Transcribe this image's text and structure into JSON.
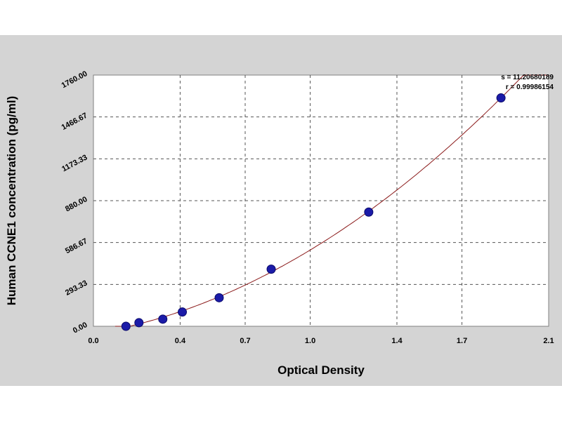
{
  "chart_data": {
    "type": "scatter",
    "xlabel": "Optical Density",
    "ylabel": "Human CCNE1 concentration (pg/ml)",
    "xlim": [
      0.0,
      2.1
    ],
    "ylim": [
      0.0,
      1760.0
    ],
    "x_ticks": [
      0.0,
      0.4,
      0.7,
      1.0,
      1.4,
      1.7,
      2.1
    ],
    "x_tick_labels": [
      "0.0",
      "0.4",
      "0.7",
      "1.0",
      "1.4",
      "1.7",
      "2.1"
    ],
    "y_ticks": [
      0,
      293.33,
      586.67,
      880,
      1173.33,
      1466.67,
      1760
    ],
    "y_tick_labels": [
      "0.00",
      "293.33",
      "586.67",
      "880.00",
      "1173.33",
      "1466.67",
      "1760.00"
    ],
    "grid": true,
    "grid_style": "dashed",
    "stats": {
      "s_text": "s = 11.20680189",
      "r_text": "r = 0.99986154"
    },
    "series": [
      {
        "values_x": [
          0.15,
          0.21,
          0.32,
          0.41,
          0.58,
          0.82,
          1.27,
          1.88
        ],
        "values_y": [
          0,
          25,
          50,
          100,
          200,
          400,
          800,
          1600
        ],
        "marker": "circle",
        "color": "#1b1ba8"
      }
    ],
    "fit_curve": {
      "type": "polynomial",
      "color": "#8b1a1a",
      "x_range": [
        0.1,
        2.1
      ]
    }
  }
}
